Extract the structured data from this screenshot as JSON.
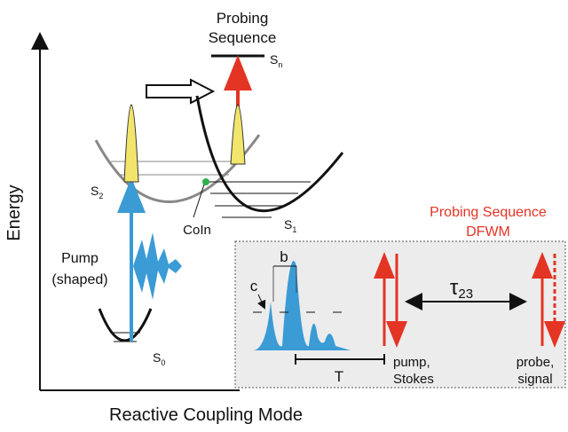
{
  "axes": {
    "y_label": "Energy",
    "x_label": "Reactive Coupling Mode"
  },
  "states": [
    {
      "main": "S",
      "sub": "n"
    },
    {
      "main": "S",
      "sub": "2"
    },
    {
      "main": "S",
      "sub": "1"
    },
    {
      "main": "S",
      "sub": "0"
    }
  ],
  "labels": {
    "probing_top": [
      "Probing",
      "Sequence"
    ],
    "coin": "CoIn",
    "pump": [
      "Pump",
      "(shaped)"
    ]
  },
  "inset": {
    "title": [
      "Probing Sequence",
      "DFWM"
    ],
    "b": "b",
    "c": "c",
    "tau": {
      "main": "τ",
      "sub": "23"
    },
    "T": "T",
    "pump_label": [
      "pump,",
      "Stokes"
    ],
    "probe_label": [
      "probe,",
      "signal"
    ]
  }
}
